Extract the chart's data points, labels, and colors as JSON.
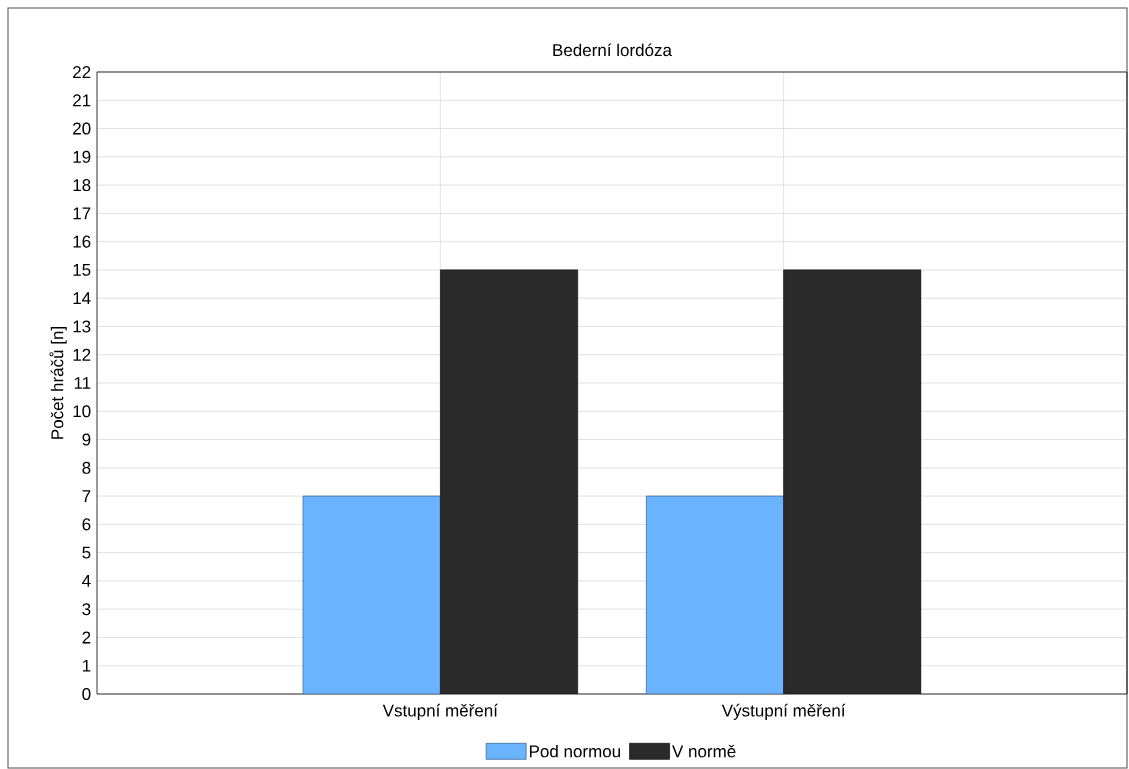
{
  "chart_data": {
    "type": "bar",
    "title": "Bederní lordóza",
    "ylabel": "Počet hráčů [n]",
    "categories": [
      "Vstupní měření",
      "Výstupní měření"
    ],
    "series": [
      {
        "name": "Pod normou",
        "color": "#6ab4ff",
        "values": [
          7,
          7
        ]
      },
      {
        "name": "V normě",
        "color": "#2a2a2a",
        "values": [
          15,
          15
        ]
      }
    ],
    "ylim": [
      0,
      22
    ],
    "yticks": [
      0,
      1,
      2,
      3,
      4,
      5,
      6,
      7,
      8,
      9,
      10,
      11,
      12,
      13,
      14,
      15,
      16,
      17,
      18,
      19,
      20,
      21,
      22
    ],
    "grid": true,
    "legend": "bottom"
  }
}
